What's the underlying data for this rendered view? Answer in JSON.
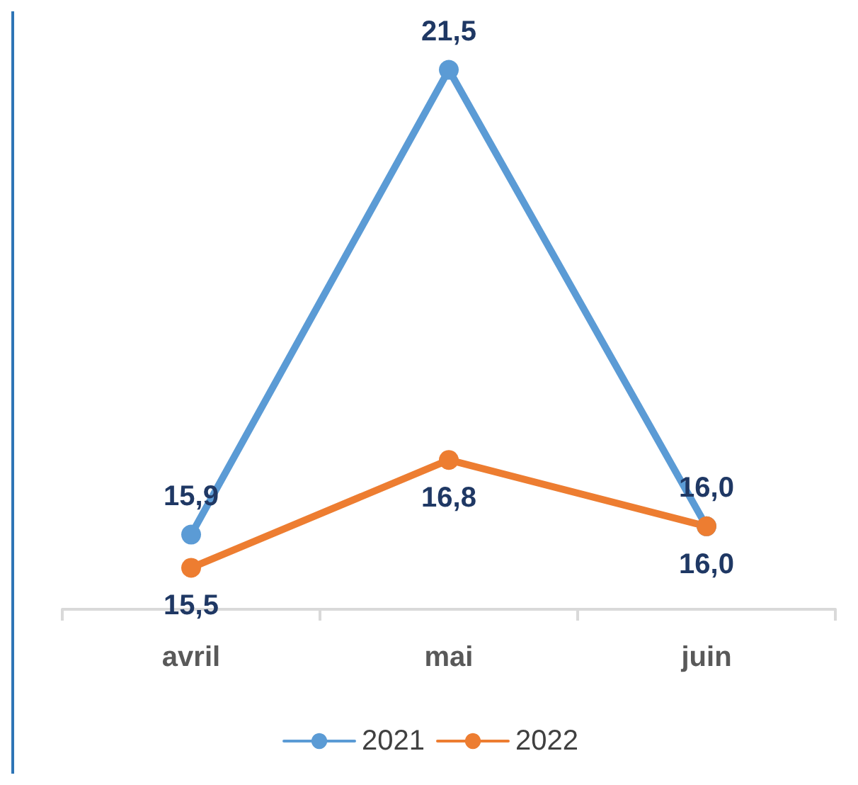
{
  "chart_data": {
    "type": "line",
    "categories": [
      "avril",
      "mai",
      "juin"
    ],
    "series": [
      {
        "name": "2021",
        "color": "#5b9bd5",
        "values": [
          15.9,
          21.5,
          16.0
        ],
        "value_labels": [
          "15,9",
          "21,5",
          "16,0"
        ]
      },
      {
        "name": "2022",
        "color": "#ed7d31",
        "values": [
          15.5,
          16.8,
          16.0
        ],
        "value_labels": [
          "15,5",
          "16,8",
          "16,0"
        ]
      }
    ],
    "legend": "bottom",
    "marker": "circle",
    "line_style": "solid",
    "grid": false,
    "tick_labels": "x"
  }
}
